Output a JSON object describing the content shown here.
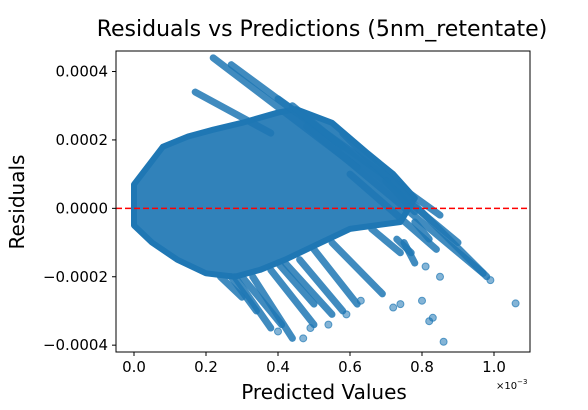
{
  "chart_data": {
    "type": "scatter",
    "title": "Residuals vs Predictions (5nm_retentate)",
    "xlabel": "Predicted Values",
    "ylabel": "Residuals",
    "x_offset_base": "×10",
    "x_offset_exp": "−3",
    "xlim": [
      -0.05,
      1.1
    ],
    "ylim": [
      -0.00042,
      0.00046
    ],
    "x_ticks": [
      0.0,
      0.2,
      0.4,
      0.6,
      0.8,
      1.0
    ],
    "x_tick_labels": [
      "0.0",
      "0.2",
      "0.4",
      "0.6",
      "0.8",
      "1.0"
    ],
    "y_ticks": [
      -0.0004,
      -0.0002,
      0.0,
      0.0002,
      0.0004
    ],
    "y_tick_labels": [
      "−0.0004",
      "−0.0002",
      "0.0000",
      "0.0002",
      "0.0004"
    ],
    "reference_line": {
      "y": 0.0,
      "color": "#ff0000",
      "style": "dashed"
    },
    "point_color": "#1f77b4",
    "grid": false,
    "cloud_polygon": [
      [
        0.0,
        7e-05
      ],
      [
        0.08,
        0.00018
      ],
      [
        0.15,
        0.00021
      ],
      [
        0.22,
        0.00023
      ],
      [
        0.3,
        0.00025
      ],
      [
        0.4,
        0.00028
      ],
      [
        0.45,
        0.00029
      ],
      [
        0.55,
        0.00025
      ],
      [
        0.65,
        0.00016
      ],
      [
        0.72,
        0.0001
      ],
      [
        0.78,
        3e-05
      ],
      [
        0.74,
        -4e-05
      ],
      [
        0.6,
        -6e-05
      ],
      [
        0.5,
        -0.00011
      ],
      [
        0.42,
        -0.00015
      ],
      [
        0.35,
        -0.00018
      ],
      [
        0.28,
        -0.0002
      ],
      [
        0.2,
        -0.00019
      ],
      [
        0.12,
        -0.00015
      ],
      [
        0.05,
        -0.0001
      ],
      [
        0.0,
        -5e-05
      ]
    ],
    "streaks": [
      [
        [
          0.22,
          0.00044
        ],
        [
          0.62,
          0.00012
        ]
      ],
      [
        [
          0.27,
          0.00042
        ],
        [
          0.58,
          0.00018
        ]
      ],
      [
        [
          0.17,
          0.00034
        ],
        [
          0.38,
          0.00022
        ]
      ],
      [
        [
          0.4,
          0.00032
        ],
        [
          0.85,
          -2e-05
        ]
      ],
      [
        [
          0.44,
          0.0003
        ],
        [
          0.9,
          -0.0001
        ]
      ],
      [
        [
          0.48,
          0.00024
        ],
        [
          0.97,
          -0.00019
        ]
      ],
      [
        [
          0.58,
          0.00022
        ],
        [
          0.98,
          -0.0002
        ]
      ],
      [
        [
          0.6,
          0.0001
        ],
        [
          0.84,
          -0.00012
        ]
      ],
      [
        [
          0.7,
          8e-05
        ],
        [
          0.78,
          -1e-05
        ]
      ],
      [
        [
          0.78,
          -4e-05
        ],
        [
          0.82,
          -9e-05
        ]
      ],
      [
        [
          0.66,
          -6e-05
        ],
        [
          0.74,
          -0.00013
        ]
      ],
      [
        [
          0.73,
          -9e-05
        ],
        [
          0.77,
          -0.00013
        ]
      ],
      [
        [
          0.75,
          -0.0001
        ],
        [
          0.78,
          -0.00016
        ]
      ],
      [
        [
          0.55,
          -0.0001
        ],
        [
          0.69,
          -0.00025
        ]
      ],
      [
        [
          0.5,
          -0.00012
        ],
        [
          0.62,
          -0.00028
        ]
      ],
      [
        [
          0.46,
          -0.00015
        ],
        [
          0.58,
          -0.0003
        ]
      ],
      [
        [
          0.42,
          -0.00016
        ],
        [
          0.55,
          -0.00031
        ]
      ],
      [
        [
          0.38,
          -0.00018
        ],
        [
          0.5,
          -0.00034
        ]
      ],
      [
        [
          0.33,
          -0.0002
        ],
        [
          0.44,
          -0.00038
        ]
      ],
      [
        [
          0.3,
          -0.0002
        ],
        [
          0.41,
          -0.00034
        ]
      ],
      [
        [
          0.28,
          -0.0002
        ],
        [
          0.38,
          -0.00035
        ]
      ],
      [
        [
          0.27,
          -0.0002
        ],
        [
          0.34,
          -0.0003
        ]
      ],
      [
        [
          0.24,
          -0.0002
        ],
        [
          0.3,
          -0.00026
        ]
      ],
      [
        [
          0.4,
          -0.00016
        ],
        [
          0.5,
          -0.00028
        ]
      ]
    ],
    "outliers": [
      [
        1.06,
        -0.000278
      ],
      [
        0.99,
        -0.00021
      ],
      [
        0.8,
        -0.00027
      ],
      [
        0.83,
        -0.00032
      ],
      [
        0.82,
        -0.00033
      ],
      [
        0.74,
        -0.00028
      ],
      [
        0.63,
        -0.00027
      ],
      [
        0.59,
        -0.00031
      ],
      [
        0.54,
        -0.00034
      ],
      [
        0.49,
        -0.00035
      ],
      [
        0.47,
        -0.00038
      ],
      [
        0.86,
        -0.00039
      ],
      [
        0.4,
        -0.00036
      ],
      [
        0.72,
        -0.00029
      ],
      [
        0.81,
        -0.00017
      ],
      [
        0.85,
        -0.0002
      ]
    ]
  }
}
